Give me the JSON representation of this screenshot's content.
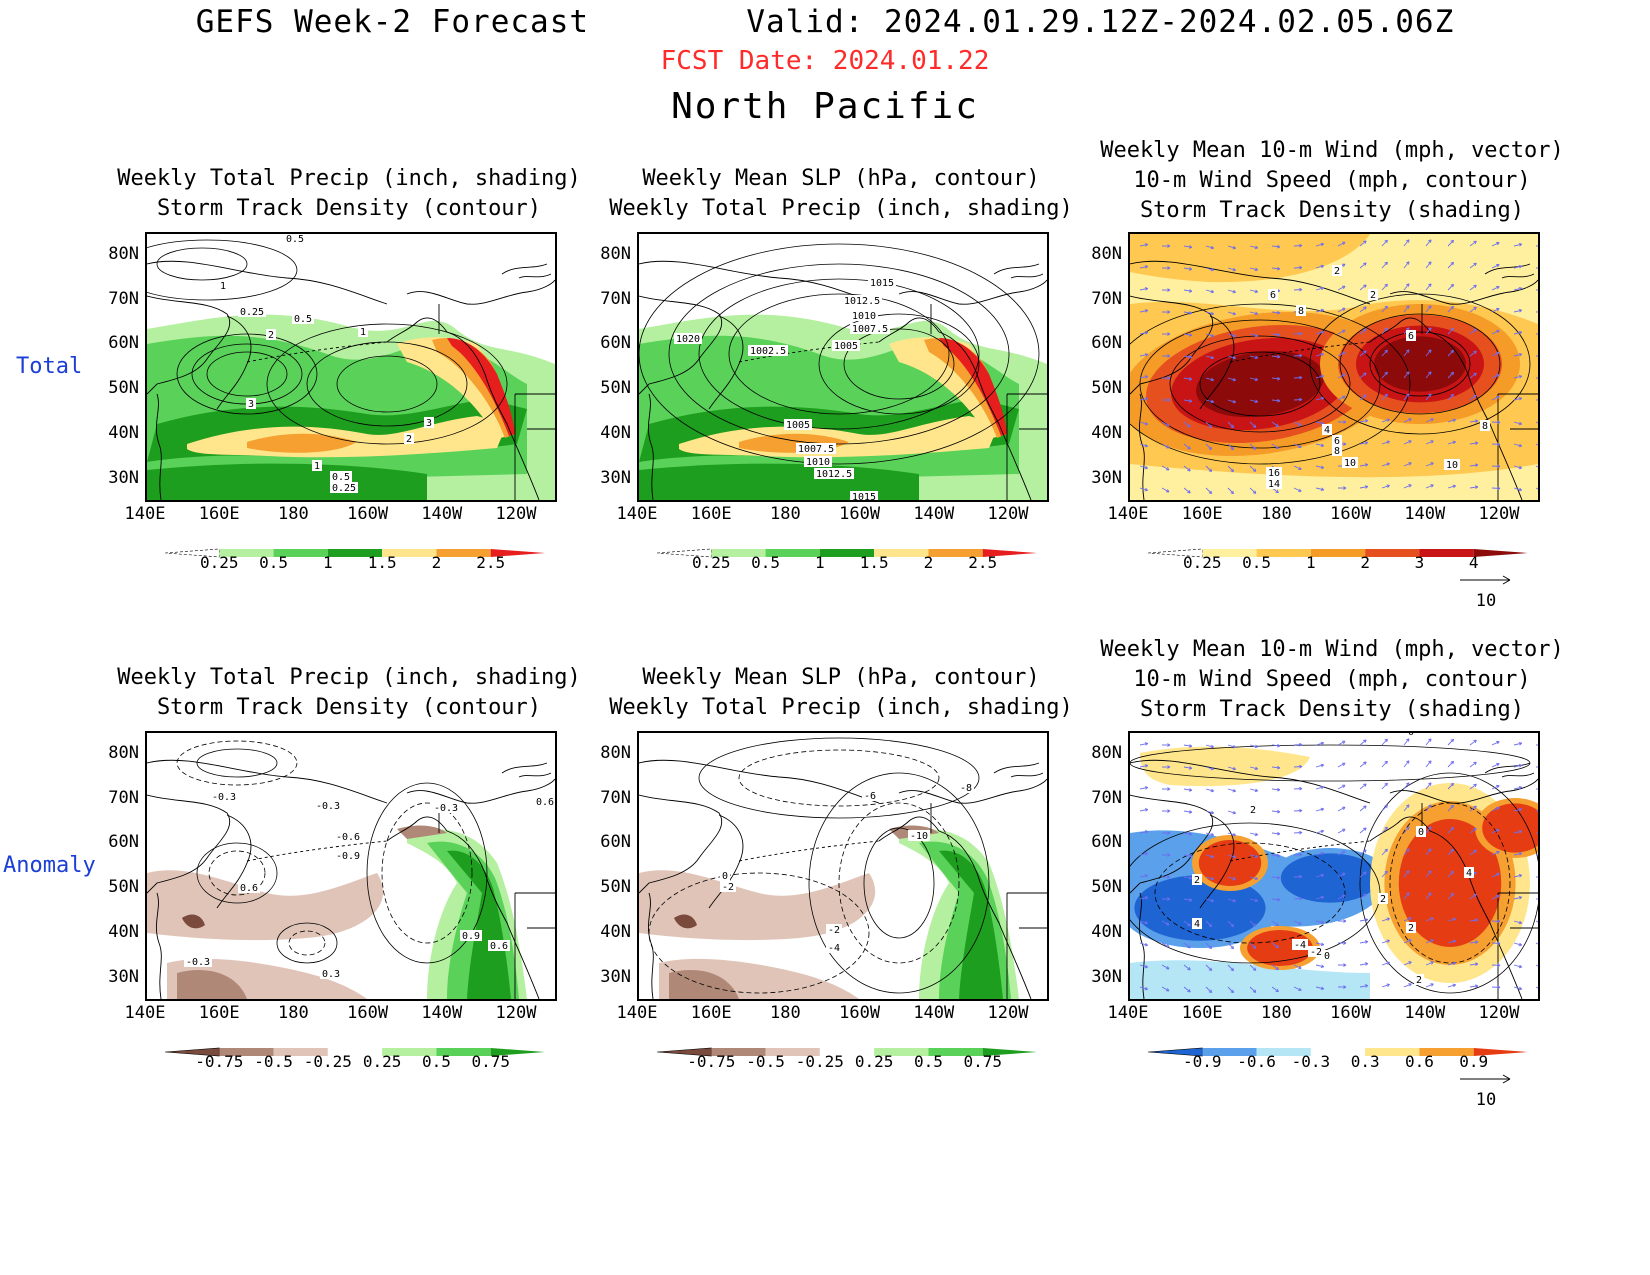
{
  "header": {
    "title": "GEFS Week-2 Forecast        Valid: 2024.01.29.12Z-2024.02.05.06Z",
    "fcst_date": "FCST Date: 2024.01.22",
    "region": "North Pacific"
  },
  "rows": {
    "total": "Total",
    "anomaly": "Anomaly"
  },
  "axes": {
    "lat_labels": [
      "80N",
      "70N",
      "60N",
      "50N",
      "40N",
      "30N"
    ],
    "lon_labels": [
      "140E",
      "160E",
      "180",
      "160W",
      "140W",
      "120W"
    ]
  },
  "panels": {
    "t1": {
      "title": "Weekly Total Precip (inch, shading)\nStorm Track Density (contour)",
      "colorbar": [
        "0.25",
        "0.5",
        "1",
        "1.5",
        "2",
        "2.5"
      ],
      "contour_labels": [
        "0.5",
        "1",
        "0.25",
        "0.5",
        "2",
        "1",
        "3",
        "3",
        "2",
        "1",
        "0.5",
        "0.25"
      ]
    },
    "t2": {
      "title": "Weekly Mean SLP (hPa, contour)\nWeekly Total Precip (inch, shading)",
      "colorbar": [
        "0.25",
        "0.5",
        "1",
        "1.5",
        "2",
        "2.5"
      ],
      "contour_labels": [
        "1015",
        "1012.5",
        "1010",
        "1007.5",
        "1005",
        "1020",
        "1002.5",
        "1005",
        "1007.5",
        "1010",
        "1012.5",
        "1015"
      ]
    },
    "t3": {
      "title": "Weekly Mean 10-m Wind (mph, vector)\n10-m Wind Speed (mph, contour)\nStorm Track Density (shading)",
      "colorbar": [
        "0.25",
        "0.5",
        "1",
        "2",
        "3",
        "4"
      ],
      "vector_ref": "10",
      "contour_labels": [
        "2",
        "6",
        "2",
        "8",
        "6",
        "4",
        "6",
        "8",
        "10",
        "10",
        "8",
        "16",
        "14"
      ]
    },
    "a1": {
      "title": "Weekly Total Precip (inch, shading)\nStorm Track Density (contour)",
      "colorbar": [
        "-0.75",
        "-0.5",
        "-0.25",
        "0.25",
        "0.5",
        "0.75"
      ],
      "contour_labels": [
        "-0.3",
        "-0.3",
        "-0.3",
        "-0.6",
        "-0.9",
        "0.6",
        "-0.3",
        "0.3",
        "0.9",
        "0.6",
        "0.6"
      ]
    },
    "a2": {
      "title": "Weekly Mean SLP (hPa, contour)\nWeekly Total Precip (inch, shading)",
      "colorbar": [
        "-0.75",
        "-0.5",
        "-0.25",
        "0.25",
        "0.5",
        "0.75"
      ],
      "contour_labels": [
        "-8",
        "-6",
        "-10",
        "0",
        "-2",
        "-2",
        "-4"
      ]
    },
    "a3": {
      "title": "Weekly Mean 10-m Wind (mph, vector)\n10-m Wind Speed (mph, contour)\nStorm Track Density (shading)",
      "colorbar": [
        "-0.9",
        "-0.6",
        "-0.3",
        "0.3",
        "0.6",
        "0.9"
      ],
      "vector_ref": "10",
      "contour_labels": [
        "0",
        "2",
        "0",
        "2",
        "4",
        "4",
        "2",
        "-4",
        "-2",
        "0",
        "2",
        "2"
      ]
    }
  },
  "colors": {
    "precip_total": [
      "#ffffff",
      "#b4f0a0",
      "#5ad25a",
      "#1e9e1e",
      "#ffe68c",
      "#f5a030",
      "#e61e1e"
    ],
    "precip_anom": [
      "#7a4a3c",
      "#b08878",
      "#e0c4b8",
      "#ffffff",
      "#b4f0a0",
      "#5ad25a",
      "#1e9e1e"
    ],
    "storm_total": [
      "#ffffff",
      "#fff0a0",
      "#ffc850",
      "#f59b28",
      "#e6501e",
      "#c81414",
      "#8c0a0a"
    ],
    "storm_anom": [
      "#1e64d2",
      "#5aa0ea",
      "#b4e6f5",
      "#ffffff",
      "#ffe68c",
      "#f5a030",
      "#e63c14"
    ],
    "vector": "#6e6ef0",
    "row_label": "#1a3fd6",
    "fcst_date": "#ff2a2a"
  }
}
